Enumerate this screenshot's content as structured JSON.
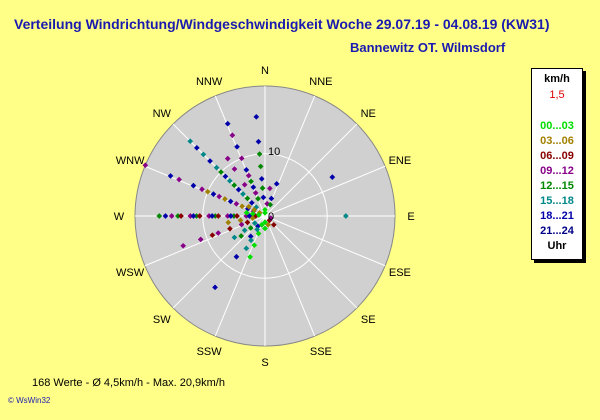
{
  "header": {
    "title": "Verteilung Windrichtung/Windgeschwindigkeit  Woche 29.07.19 - 04.08.19 (KW31)",
    "station": "Bannewitz OT. Wilmsdorf"
  },
  "footer": {
    "stats": "168 Werte   -   Ø 4,5km/h  -  Max. 20,9km/h",
    "credit": "© WsWin32"
  },
  "legend": {
    "unit": "km/h",
    "scale_value": "1,5",
    "time_bins": [
      {
        "label": "00...03",
        "color": "#00dd00"
      },
      {
        "label": "03...06",
        "color": "#a08000"
      },
      {
        "label": "06...09",
        "color": "#880000"
      },
      {
        "label": "09...12",
        "color": "#880088"
      },
      {
        "label": "12...15",
        "color": "#008800"
      },
      {
        "label": "15...18",
        "color": "#008888"
      },
      {
        "label": "18...21",
        "color": "#0000aa"
      },
      {
        "label": "21...24",
        "color": "#000088"
      }
    ],
    "footer_label": "Uhr",
    "scale_color": "#dd0000"
  },
  "chart_data": {
    "type": "scatter",
    "subtype": "polar-wind-rose",
    "title": "Verteilung Windrichtung/Windgeschwindigkeit  Woche 29.07.19 - 04.08.19 (KW31)",
    "directions": [
      "N",
      "NNE",
      "NE",
      "ENE",
      "E",
      "ESE",
      "SE",
      "SSE",
      "S",
      "SSW",
      "SW",
      "WSW",
      "W",
      "WNW",
      "NW",
      "NNW"
    ],
    "r_max": 20.9,
    "ring_labels": [
      {
        "value": 10,
        "label": "10"
      }
    ],
    "center_label": "0",
    "background_color": "#d0d0d0",
    "grid": true,
    "point_groups": [
      {
        "direction_deg": 270,
        "time_bin": "12...15",
        "speeds": [
          2,
          5,
          8,
          11,
          14,
          17
        ]
      },
      {
        "direction_deg": 270,
        "time_bin": "09...12",
        "speeds": [
          3,
          6,
          9,
          12,
          15
        ]
      },
      {
        "direction_deg": 270,
        "time_bin": "06...09",
        "speeds": [
          1.5,
          4.5,
          7.5,
          10.5,
          13.5
        ]
      },
      {
        "direction_deg": 270,
        "time_bin": "18...21",
        "speeds": [
          2.5,
          5.5,
          8.5,
          11.5,
          16
        ]
      },
      {
        "direction_deg": 293,
        "time_bin": "09...12",
        "speeds": [
          2,
          5,
          8,
          11,
          15
        ]
      },
      {
        "direction_deg": 293,
        "time_bin": "18...21",
        "speeds": [
          3,
          6,
          9,
          12.5,
          16.5
        ]
      },
      {
        "direction_deg": 293,
        "time_bin": "03...06",
        "speeds": [
          4,
          7,
          10
        ]
      },
      {
        "direction_deg": 293,
        "time_bin": "09...12",
        "speeds": [
          20.9
        ]
      },
      {
        "direction_deg": 315,
        "time_bin": "15...18",
        "speeds": [
          2,
          5,
          8,
          11,
          14,
          17
        ]
      },
      {
        "direction_deg": 315,
        "time_bin": "18...21",
        "speeds": [
          3,
          6,
          9,
          12.5,
          15.5
        ]
      },
      {
        "direction_deg": 315,
        "time_bin": "12...15",
        "speeds": [
          4,
          7,
          10
        ]
      },
      {
        "direction_deg": 327,
        "time_bin": "09...12",
        "speeds": [
          6,
          9,
          11
        ]
      },
      {
        "direction_deg": 338,
        "time_bin": "09...12",
        "speeds": [
          4,
          7,
          10,
          14
        ]
      },
      {
        "direction_deg": 338,
        "time_bin": "18...21",
        "speeds": [
          5,
          8,
          12,
          16
        ]
      },
      {
        "direction_deg": 338,
        "time_bin": "12...15",
        "speeds": [
          3,
          6
        ]
      },
      {
        "direction_deg": 355,
        "time_bin": "18...21",
        "speeds": [
          3,
          6,
          12,
          16
        ]
      },
      {
        "direction_deg": 355,
        "time_bin": "12...15",
        "speeds": [
          4.5,
          8,
          10
        ]
      },
      {
        "direction_deg": 10,
        "time_bin": "09...12",
        "speeds": [
          2,
          4.5
        ]
      },
      {
        "direction_deg": 20,
        "time_bin": "18...21",
        "speeds": [
          3,
          5.5
        ]
      },
      {
        "direction_deg": 25,
        "time_bin": "12...15",
        "speeds": [
          2
        ]
      },
      {
        "direction_deg": 60,
        "time_bin": "18...21",
        "speeds": [
          12.5
        ]
      },
      {
        "direction_deg": 90,
        "time_bin": "15...18",
        "speeds": [
          13
        ]
      },
      {
        "direction_deg": 250,
        "time_bin": "09...12",
        "speeds": [
          4,
          8,
          11,
          14
        ]
      },
      {
        "direction_deg": 250,
        "time_bin": "06...09",
        "speeds": [
          3,
          6,
          9
        ]
      },
      {
        "direction_deg": 235,
        "time_bin": "15...18",
        "speeds": [
          2,
          4,
          6
        ]
      },
      {
        "direction_deg": 230,
        "time_bin": "12...15",
        "speeds": [
          3,
          5
        ]
      },
      {
        "direction_deg": 215,
        "time_bin": "18...21",
        "speeds": [
          2,
          4,
          8,
          14
        ]
      },
      {
        "direction_deg": 200,
        "time_bin": "00...03",
        "speeds": [
          1.5,
          3,
          5,
          7
        ]
      },
      {
        "direction_deg": 210,
        "time_bin": "15...18",
        "speeds": [
          2.5,
          4.5,
          6
        ]
      },
      {
        "direction_deg": 135,
        "time_bin": "06...09",
        "speeds": [
          1,
          2
        ]
      },
      {
        "direction_deg": 110,
        "time_bin": "09...12",
        "speeds": [
          1
        ]
      },
      {
        "direction_deg": 180,
        "time_bin": "00...03",
        "speeds": [
          1,
          2
        ]
      },
      {
        "direction_deg": 160,
        "time_bin": "03...06",
        "speeds": [
          1.5
        ]
      },
      {
        "direction_deg": 0,
        "time_bin": "00...03",
        "speeds": [
          0.5,
          1
        ]
      },
      {
        "direction_deg": 300,
        "time_bin": "03...06",
        "speeds": [
          1,
          2,
          3
        ]
      },
      {
        "direction_deg": 280,
        "time_bin": "00...03",
        "speeds": [
          1,
          2,
          3
        ]
      },
      {
        "direction_deg": 260,
        "time_bin": "03...06",
        "speeds": [
          2,
          4,
          6
        ]
      }
    ]
  }
}
